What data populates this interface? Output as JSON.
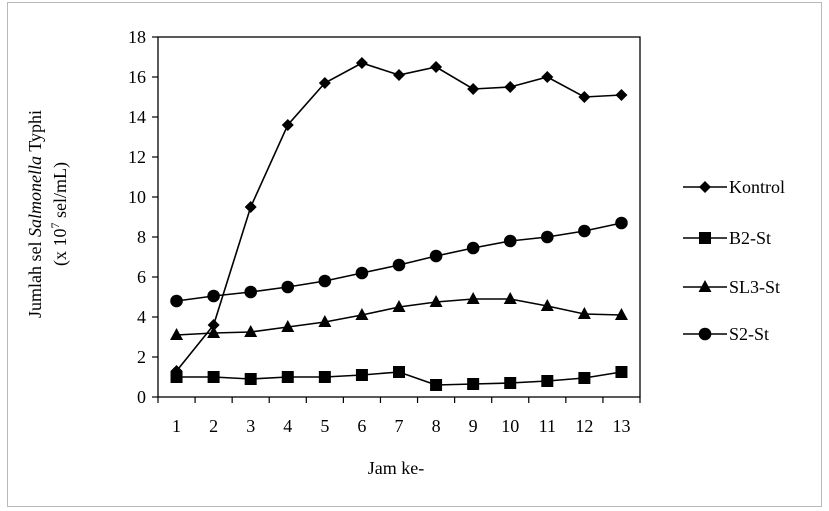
{
  "chart_data": {
    "type": "line",
    "title": "",
    "xlabel": "Jam ke-",
    "ylabel": {
      "line1_prefix": "Jumlah sel ",
      "line1_italic": "Salmonella",
      "line1_suffix": " Typhi",
      "line2_prefix": "(x 10",
      "line2_sup": "7",
      "line2_suffix": " sel/mL)"
    },
    "x": [
      "1",
      "2",
      "3",
      "4",
      "5",
      "6",
      "7",
      "8",
      "9",
      "10",
      "11",
      "12",
      "13"
    ],
    "yticks": [
      "0",
      "2",
      "4",
      "6",
      "8",
      "10",
      "12",
      "14",
      "16",
      "18"
    ],
    "ylim": [
      0,
      18
    ],
    "grid": false,
    "legend_position": "right",
    "series": [
      {
        "name": "Kontrol",
        "marker": "diamond",
        "values": [
          1.3,
          3.6,
          9.5,
          13.6,
          15.7,
          16.7,
          16.1,
          16.5,
          15.4,
          15.5,
          16.0,
          15.0,
          15.1
        ]
      },
      {
        "name": "B2-St",
        "marker": "square",
        "values": [
          1.0,
          1.0,
          0.9,
          1.0,
          1.0,
          1.1,
          1.25,
          0.6,
          0.65,
          0.7,
          0.8,
          0.95,
          1.25
        ]
      },
      {
        "name": "SL3-St",
        "marker": "triangle",
        "values": [
          3.1,
          3.2,
          3.25,
          3.5,
          3.75,
          4.1,
          4.5,
          4.75,
          4.9,
          4.9,
          4.55,
          4.15,
          4.1
        ]
      },
      {
        "name": "S2-St",
        "marker": "circle",
        "values": [
          4.8,
          5.05,
          5.25,
          5.5,
          5.8,
          6.2,
          6.6,
          7.05,
          7.45,
          7.8,
          8.0,
          8.3,
          8.7
        ]
      }
    ],
    "colors": {
      "line": "#000000",
      "axis": "#000000",
      "frame": "#b8b8b8"
    }
  }
}
